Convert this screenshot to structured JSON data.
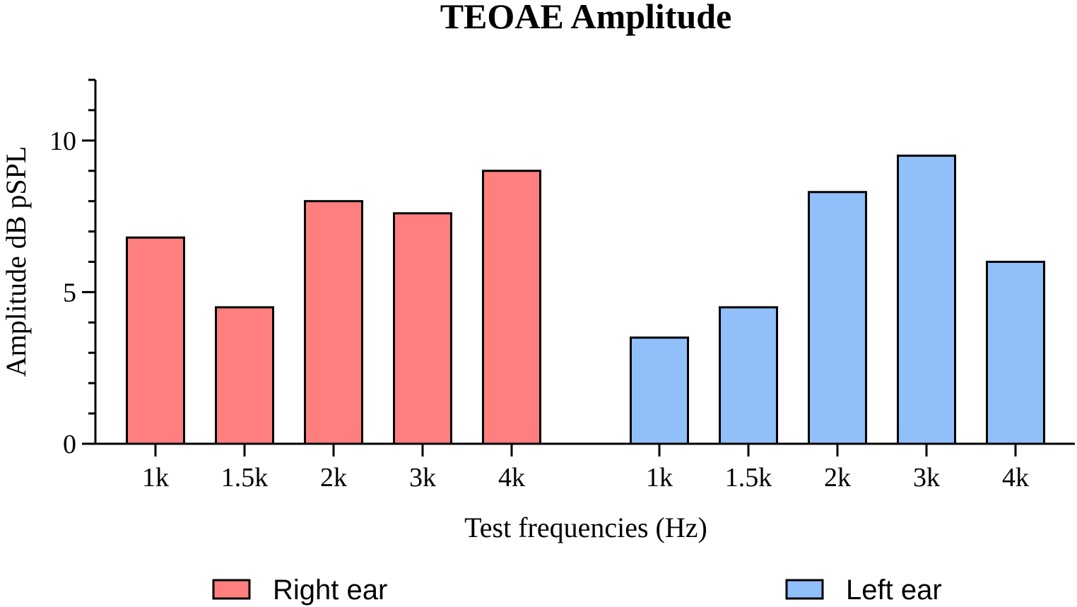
{
  "chart_data": {
    "type": "bar",
    "title": "TEOAE Amplitude",
    "xlabel": "Test frequencies (Hz)",
    "ylabel": "Amplitude dB pSPL",
    "ylim": [
      0,
      12
    ],
    "yticks_major": [
      0,
      5,
      10
    ],
    "yticks_minor_step": 1,
    "grid": false,
    "legend_position": "bottom",
    "groups": [
      {
        "name": "Right ear",
        "color": "#FF7F7F",
        "categories": [
          "1k",
          "1.5k",
          "2k",
          "3k",
          "4k"
        ],
        "values": [
          6.8,
          4.5,
          8.0,
          7.6,
          9.0
        ]
      },
      {
        "name": "Left ear",
        "color": "#91BFFA",
        "categories": [
          "1k",
          "1.5k",
          "2k",
          "3k",
          "4k"
        ],
        "values": [
          3.5,
          4.5,
          8.3,
          9.5,
          6.0
        ]
      }
    ]
  }
}
